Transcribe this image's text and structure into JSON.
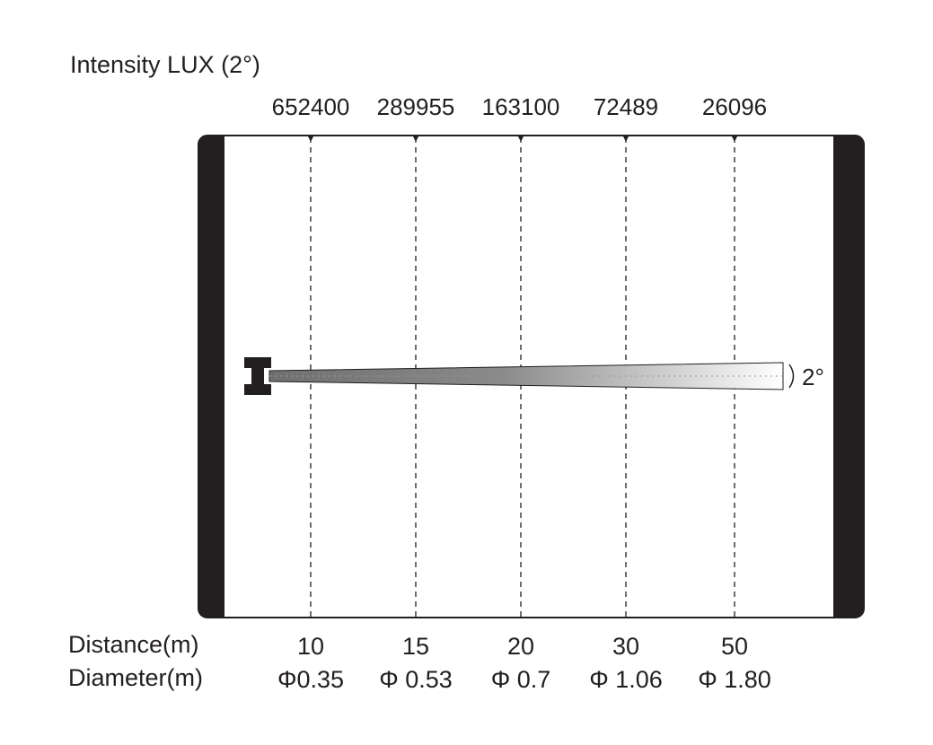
{
  "title": "Intensity LUX (2°)",
  "beam_angle_label": "2°",
  "row_labels": {
    "distance": "Distance(m)",
    "diameter": "Diameter(m)"
  },
  "columns": [
    {
      "lux": "652400",
      "distance": "10",
      "diameter": "Φ0.35"
    },
    {
      "lux": "289955",
      "distance": "15",
      "diameter": "Φ 0.53"
    },
    {
      "lux": "163100",
      "distance": "20",
      "diameter": "Φ 0.7"
    },
    {
      "lux": "72489",
      "distance": "30",
      "diameter": "Φ 1.06"
    },
    {
      "lux": "26096",
      "distance": "50",
      "diameter": "Φ 1.80"
    }
  ],
  "colors": {
    "frame": "#231f20",
    "beam_start": "#707070",
    "beam_end": "#ffffff"
  }
}
